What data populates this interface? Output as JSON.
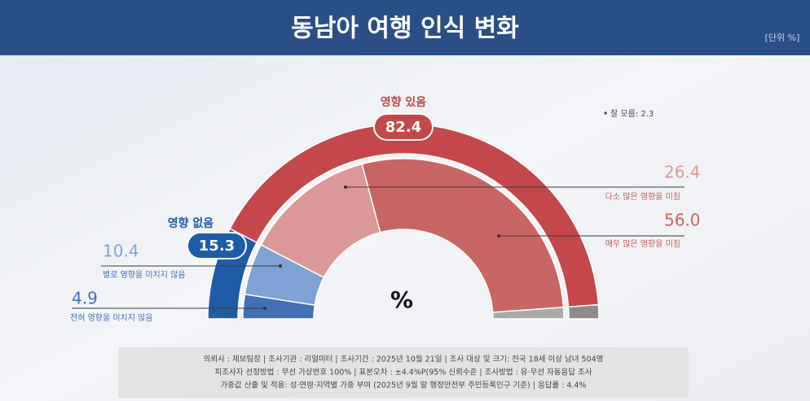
{
  "chart_data": {
    "type": "half-donut",
    "title": "동남아 여행 인식 변화",
    "unit": "[단위 %]",
    "center_label": "%",
    "note": "잘 모름: 2.3",
    "outer": {
      "categories": [
        "영향 없음",
        "영향 있음",
        null
      ],
      "values": [
        15.3,
        82.4,
        2.3
      ],
      "colors": [
        "#1d5ca6",
        "#c4484a",
        "#8c8c8c"
      ]
    },
    "inner": {
      "categories": [
        "전혀 영향을 미치지 않음",
        "별로 영향을 미치지 않음",
        "다소 많은 영향을 미침",
        "매우 많은 영향을 미침",
        null
      ],
      "values": [
        4.9,
        10.4,
        26.4,
        56.0,
        2.3
      ],
      "value_labels": [
        "4.9",
        "10.4",
        "26.4",
        "56.0",
        null
      ],
      "colors": [
        "#3f70b8",
        "#7fa2d5",
        "#dc9898",
        "#c96562",
        "#a9a9a9"
      ]
    },
    "footer": [
      "의뢰사 : 제보팀장  |  조사기관 : 리얼미터  |  조사기간 : 2025년 10월 21일  |  조사 대상 및 크기: 전국 18세 이상 남녀 504명",
      "피조사자 선정방법 : 무선 가상번호 100%  |  표본오차 : ±4.4%P(95% 신뢰수준  |  조사방법 : 유·무선 자동응답 조사",
      "가중값 산출 및 적용: 성·연령·지역별 가중 부여 (2025년 9월 말 행정안전부 주민등록인구 기준)  |  응답률 : 4.4%"
    ]
  }
}
